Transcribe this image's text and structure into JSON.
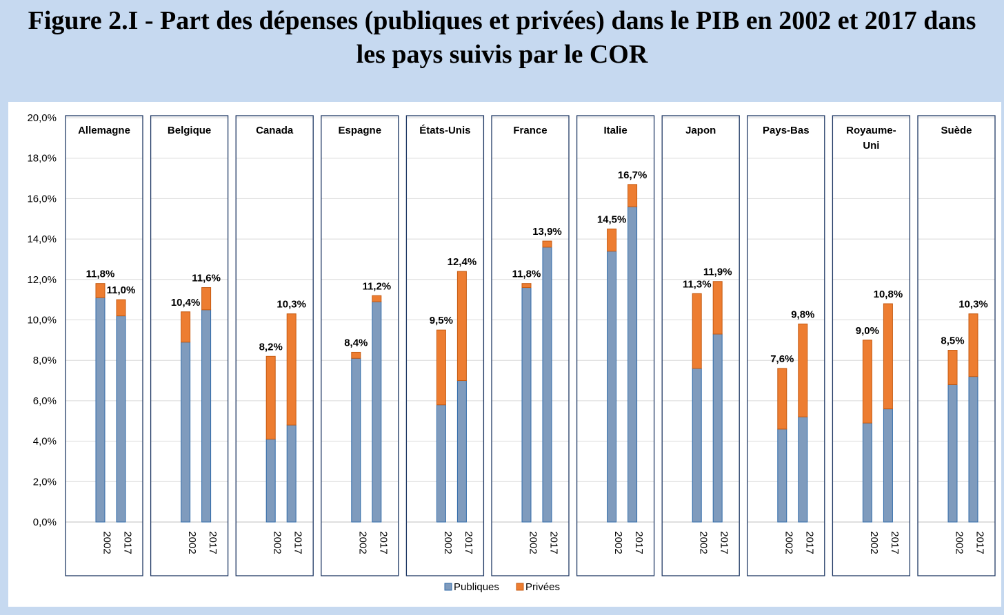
{
  "title": {
    "line1": "Figure 2.I - Part des dépenses (publiques et privées) dans le PIB en 2002 et 2017 dans",
    "line2": "les pays suivis par le COR"
  },
  "colors": {
    "publiques": "#7f9bbd",
    "publiques_stroke": "#2f6aa8",
    "privees": "#ed7d31",
    "privees_stroke": "#c55a11",
    "panel_border": "#1f3864",
    "page_bg": "#c6d9f0"
  },
  "chart_data": {
    "type": "bar",
    "stacked": true,
    "title": "Figure 2.I - Part des dépenses (publiques et privées) dans le PIB en 2002 et 2017 dans les pays suivis par le COR",
    "ylim": [
      0,
      20
    ],
    "yticks": [
      "0,0%",
      "2,0%",
      "4,0%",
      "6,0%",
      "8,0%",
      "10,0%",
      "12,0%",
      "14,0%",
      "16,0%",
      "18,0%",
      "20,0%"
    ],
    "ytick_values": [
      0,
      2,
      4,
      6,
      8,
      10,
      12,
      14,
      16,
      18,
      20
    ],
    "years": [
      "2002",
      "2017"
    ],
    "legend": [
      {
        "name": "Publiques",
        "color": "#7f9bbd"
      },
      {
        "name": "Privées",
        "color": "#ed7d31"
      }
    ],
    "legend_position": "bottom-center",
    "countries": [
      {
        "name": [
          "Allemagne"
        ],
        "bars": [
          {
            "year": "2002",
            "publiques": 11.1,
            "privees": 0.7,
            "label": "11,8%"
          },
          {
            "year": "2017",
            "publiques": 10.2,
            "privees": 0.8,
            "label": "11,0%"
          }
        ]
      },
      {
        "name": [
          "Belgique"
        ],
        "bars": [
          {
            "year": "2002",
            "publiques": 8.9,
            "privees": 1.5,
            "label": "10,4%"
          },
          {
            "year": "2017",
            "publiques": 10.5,
            "privees": 1.1,
            "label": "11,6%"
          }
        ]
      },
      {
        "name": [
          "Canada"
        ],
        "bars": [
          {
            "year": "2002",
            "publiques": 4.1,
            "privees": 4.1,
            "label": "8,2%"
          },
          {
            "year": "2017",
            "publiques": 4.8,
            "privees": 5.5,
            "label": "10,3%"
          }
        ]
      },
      {
        "name": [
          "Espagne"
        ],
        "bars": [
          {
            "year": "2002",
            "publiques": 8.1,
            "privees": 0.3,
            "label": "8,4%"
          },
          {
            "year": "2017",
            "publiques": 10.9,
            "privees": 0.3,
            "label": "11,2%"
          }
        ]
      },
      {
        "name": [
          "États-Unis"
        ],
        "bars": [
          {
            "year": "2002",
            "publiques": 5.8,
            "privees": 3.7,
            "label": "9,5%"
          },
          {
            "year": "2017",
            "publiques": 7.0,
            "privees": 5.4,
            "label": "12,4%"
          }
        ]
      },
      {
        "name": [
          "France"
        ],
        "bars": [
          {
            "year": "2002",
            "publiques": 11.6,
            "privees": 0.2,
            "label": "11,8%"
          },
          {
            "year": "2017",
            "publiques": 13.6,
            "privees": 0.3,
            "label": "13,9%"
          }
        ]
      },
      {
        "name": [
          "Italie"
        ],
        "bars": [
          {
            "year": "2002",
            "publiques": 13.4,
            "privees": 1.1,
            "label": "14,5%"
          },
          {
            "year": "2017",
            "publiques": 15.6,
            "privees": 1.1,
            "label": "16,7%"
          }
        ]
      },
      {
        "name": [
          "Japon"
        ],
        "bars": [
          {
            "year": "2002",
            "publiques": 7.6,
            "privees": 3.7,
            "label": "11,3%"
          },
          {
            "year": "2017",
            "publiques": 9.3,
            "privees": 2.6,
            "label": "11,9%"
          }
        ]
      },
      {
        "name": [
          "Pays-Bas"
        ],
        "bars": [
          {
            "year": "2002",
            "publiques": 4.6,
            "privees": 3.0,
            "label": "7,6%"
          },
          {
            "year": "2017",
            "publiques": 5.2,
            "privees": 4.6,
            "label": "9,8%"
          }
        ]
      },
      {
        "name": [
          "Royaume-",
          "Uni"
        ],
        "bars": [
          {
            "year": "2002",
            "publiques": 4.9,
            "privees": 4.1,
            "label": "9,0%"
          },
          {
            "year": "2017",
            "publiques": 5.6,
            "privees": 5.2,
            "label": "10,8%"
          }
        ]
      },
      {
        "name": [
          "Suède"
        ],
        "bars": [
          {
            "year": "2002",
            "publiques": 6.8,
            "privees": 1.7,
            "label": "8,5%"
          },
          {
            "year": "2017",
            "publiques": 7.2,
            "privees": 3.1,
            "label": "10,3%"
          }
        ]
      }
    ]
  }
}
